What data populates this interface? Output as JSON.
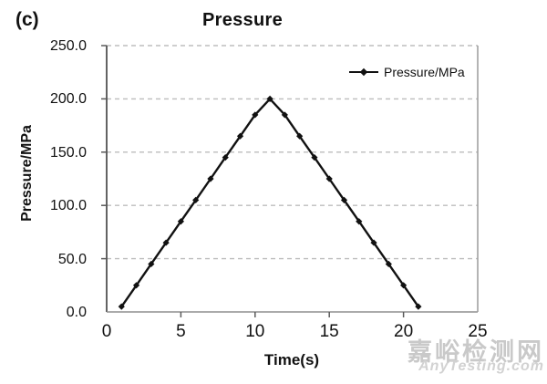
{
  "figure_label": "(c)",
  "title": "Pressure",
  "legend": {
    "label": "Pressure/MPa"
  },
  "axes": {
    "x_label": "Time(s)",
    "y_label": "Pressure/MPa",
    "x_ticks": [
      "0",
      "5",
      "10",
      "15",
      "20",
      "25"
    ],
    "x_tick_values": [
      0,
      5,
      10,
      15,
      20,
      25
    ],
    "y_ticks": [
      "0.0",
      "50.0",
      "100.0",
      "150.0",
      "200.0",
      "250.0"
    ],
    "y_tick_values": [
      0,
      50,
      100,
      150,
      200,
      250
    ]
  },
  "chart_data": {
    "type": "line",
    "title": "Pressure",
    "xlabel": "Time(s)",
    "ylabel": "Pressure/MPa",
    "xlim": [
      0,
      25
    ],
    "ylim": [
      0,
      250
    ],
    "grid": "horizontal-dashed",
    "legend_position": "top-right-inside",
    "marker": "diamond",
    "series": [
      {
        "name": "Pressure/MPa",
        "x": [
          1,
          2,
          3,
          4,
          5,
          6,
          7,
          8,
          9,
          10,
          11,
          12,
          13,
          14,
          15,
          16,
          17,
          18,
          19,
          20,
          21
        ],
        "y": [
          5,
          25,
          45,
          65,
          85,
          105,
          125,
          145,
          165,
          185,
          200,
          185,
          165,
          145,
          125,
          105,
          85,
          65,
          45,
          25,
          5
        ]
      }
    ]
  },
  "colors": {
    "series_line": "#111111",
    "marker_fill": "#111111",
    "gridline": "#bdbdbd",
    "left_axis": "#3c3c3c",
    "bottom_axis": "#8f8f8f",
    "right_border": "#9c9c9c",
    "tick_mark": "#5a5a5a",
    "text": "#111111",
    "watermark_cn": "#c9c9c9",
    "watermark_en": "#d2d2d2"
  },
  "watermark": {
    "line1": "嘉峪检测网",
    "line2": "AnyTesting.com"
  }
}
